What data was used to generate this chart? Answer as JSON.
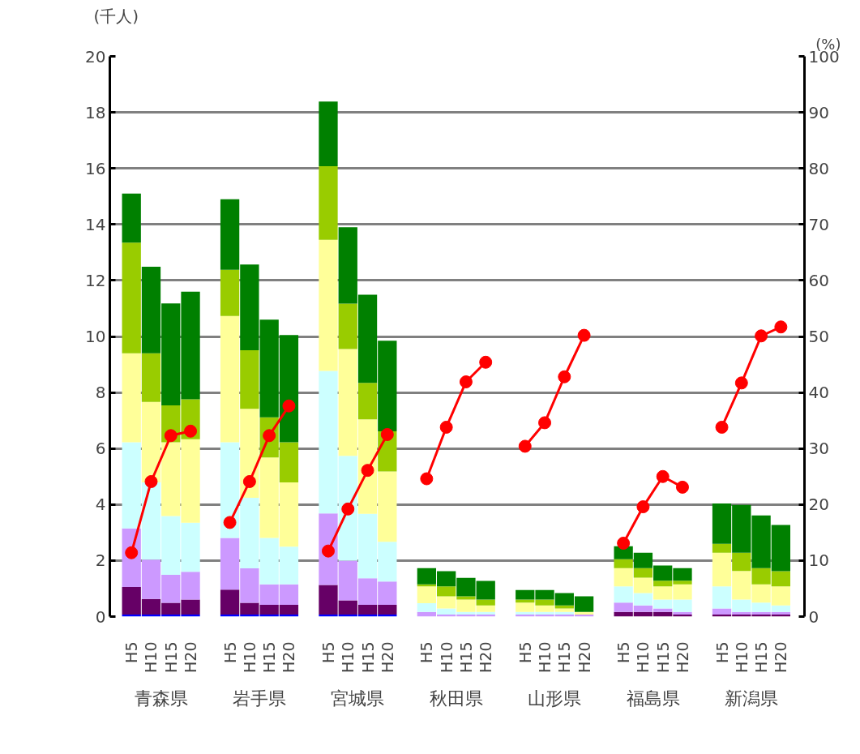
{
  "chart_data": {
    "type": "bar",
    "stacked": true,
    "categories": [
      "H5",
      "H10",
      "H15",
      "H20",
      "H5",
      "H10",
      "H15",
      "H20",
      "H5",
      "H10",
      "H15",
      "H20",
      "H5",
      "H10",
      "H15",
      "H20",
      "H5",
      "H10",
      "H15",
      "H20",
      "H5",
      "H10",
      "H15",
      "H20",
      "H5",
      "H10",
      "H15",
      "H20"
    ],
    "annotations": [
      "青森県",
      "岩手県",
      "宮城県",
      "秋田県",
      "山形県",
      "福島県",
      "新潟県"
    ],
    "ylabel": "(千人)",
    "y2label": "(%)",
    "ylim": [
      0,
      20
    ],
    "yticks": [
      0,
      2,
      4,
      6,
      8,
      10,
      12,
      14,
      16,
      18,
      20
    ],
    "y2lim": [
      0,
      100
    ],
    "y2ticks": [
      0,
      10,
      20,
      30,
      40,
      50,
      60,
      70,
      80,
      90,
      100
    ],
    "grid": "y",
    "marker": "circle",
    "line_style": "solid",
    "series": [
      {
        "color": "#0000ff",
        "values": [
          0.07,
          0.07,
          0.07,
          0.07,
          0.07,
          0.07,
          0.07,
          0.07,
          0.07,
          0.07,
          0.07,
          0.07,
          0,
          0,
          0,
          0,
          0,
          0,
          0,
          0,
          0,
          0,
          0,
          0,
          0,
          0,
          0,
          0
        ]
      },
      {
        "color": "#660066",
        "values": [
          0.99,
          0.56,
          0.42,
          0.54,
          0.89,
          0.42,
          0.35,
          0.35,
          1.06,
          0.51,
          0.35,
          0.35,
          0,
          0,
          0,
          0,
          0,
          0,
          0,
          0,
          0.17,
          0.17,
          0.17,
          0.07,
          0.07,
          0.07,
          0.07,
          0.07
        ]
      },
      {
        "color": "#cc99ff",
        "values": [
          2.09,
          1.4,
          1.0,
          0.99,
          1.85,
          1.23,
          0.73,
          0.73,
          2.55,
          1.42,
          0.95,
          0.83,
          0.17,
          0.07,
          0.07,
          0.07,
          0.07,
          0.07,
          0.07,
          0.07,
          0.33,
          0.23,
          0.12,
          0.1,
          0.22,
          0.1,
          0.1,
          0.1
        ]
      },
      {
        "color": "#ccffff",
        "values": [
          3.07,
          2.76,
          2.1,
          1.75,
          3.41,
          2.52,
          1.66,
          1.35,
          5.09,
          3.74,
          2.3,
          1.42,
          0.31,
          0.22,
          0.1,
          0.1,
          0.1,
          0.1,
          0.1,
          0,
          0.58,
          0.44,
          0.32,
          0.44,
          0.79,
          0.44,
          0.33,
          0.23
        ]
      },
      {
        "color": "#ffff99",
        "values": [
          3.18,
          2.87,
          2.63,
          2.98,
          4.51,
          3.18,
          2.87,
          2.29,
          4.68,
          3.81,
          3.37,
          2.51,
          0.6,
          0.43,
          0.44,
          0.23,
          0.33,
          0.23,
          0.12,
          0.1,
          0.65,
          0.55,
          0.47,
          0.54,
          1.2,
          1.02,
          0.65,
          0.68
        ]
      },
      {
        "color": "#99cc00",
        "values": [
          3.95,
          1.74,
          1.32,
          1.43,
          1.65,
          2.09,
          1.43,
          1.43,
          2.63,
          1.62,
          1.3,
          1.43,
          0.07,
          0.36,
          0.11,
          0.21,
          0.11,
          0.21,
          0.11,
          0,
          0.32,
          0.34,
          0.2,
          0.13,
          0.32,
          0.65,
          0.58,
          0.54
        ]
      },
      {
        "color": "#008000",
        "values": [
          1.75,
          3.09,
          3.64,
          3.84,
          2.52,
          3.06,
          3.49,
          3.83,
          2.31,
          2.73,
          3.15,
          3.24,
          0.58,
          0.54,
          0.66,
          0.66,
          0.34,
          0.34,
          0.44,
          0.55,
          0.46,
          0.55,
          0.54,
          0.45,
          1.44,
          1.71,
          1.88,
          1.65
        ]
      },
      {
        "type": "line",
        "axis": "y2",
        "color": "#ff0000",
        "values": [
          11.4,
          24.1,
          32.3,
          33.1,
          null,
          null,
          null,
          null,
          null,
          null,
          null,
          null,
          null,
          null,
          null,
          null,
          null,
          null,
          null,
          null,
          null,
          null,
          null,
          null,
          null,
          null,
          null,
          null
        ]
      },
      {
        "type": "line",
        "axis": "y2",
        "color": "#ff0000",
        "values": [
          null,
          null,
          null,
          null,
          16.8,
          24.1,
          32.3,
          37.6,
          null,
          null,
          null,
          null,
          null,
          null,
          null,
          null,
          null,
          null,
          null,
          null,
          null,
          null,
          null,
          null,
          null,
          null,
          null,
          null
        ]
      },
      {
        "type": "line",
        "axis": "y2",
        "color": "#ff0000",
        "values": [
          null,
          null,
          null,
          null,
          null,
          null,
          null,
          null,
          11.7,
          19.2,
          26.1,
          32.5,
          null,
          null,
          null,
          null,
          null,
          null,
          null,
          null,
          null,
          null,
          null,
          null,
          null,
          null,
          null,
          null
        ]
      },
      {
        "type": "line",
        "axis": "y2",
        "color": "#ff0000",
        "values": [
          null,
          null,
          null,
          null,
          null,
          null,
          null,
          null,
          null,
          null,
          null,
          null,
          24.6,
          33.8,
          41.9,
          45.4,
          null,
          null,
          null,
          null,
          null,
          null,
          null,
          null,
          null,
          null,
          null,
          null
        ]
      },
      {
        "type": "line",
        "axis": "y2",
        "color": "#ff0000",
        "values": [
          null,
          null,
          null,
          null,
          null,
          null,
          null,
          null,
          null,
          null,
          null,
          null,
          null,
          null,
          null,
          null,
          30.4,
          34.6,
          42.8,
          50.2,
          null,
          null,
          null,
          null,
          null,
          null,
          null,
          null
        ]
      },
      {
        "type": "line",
        "axis": "y2",
        "color": "#ff0000",
        "values": [
          null,
          null,
          null,
          null,
          null,
          null,
          null,
          null,
          null,
          null,
          null,
          null,
          null,
          null,
          null,
          null,
          null,
          null,
          null,
          null,
          13.1,
          19.6,
          25.0,
          23.1,
          null,
          null,
          null,
          null
        ]
      },
      {
        "type": "line",
        "axis": "y2",
        "color": "#ff0000",
        "values": [
          null,
          null,
          null,
          null,
          null,
          null,
          null,
          null,
          null,
          null,
          null,
          null,
          null,
          null,
          null,
          null,
          null,
          null,
          null,
          null,
          null,
          null,
          null,
          null,
          33.8,
          41.7,
          50.1,
          51.7
        ]
      }
    ]
  }
}
